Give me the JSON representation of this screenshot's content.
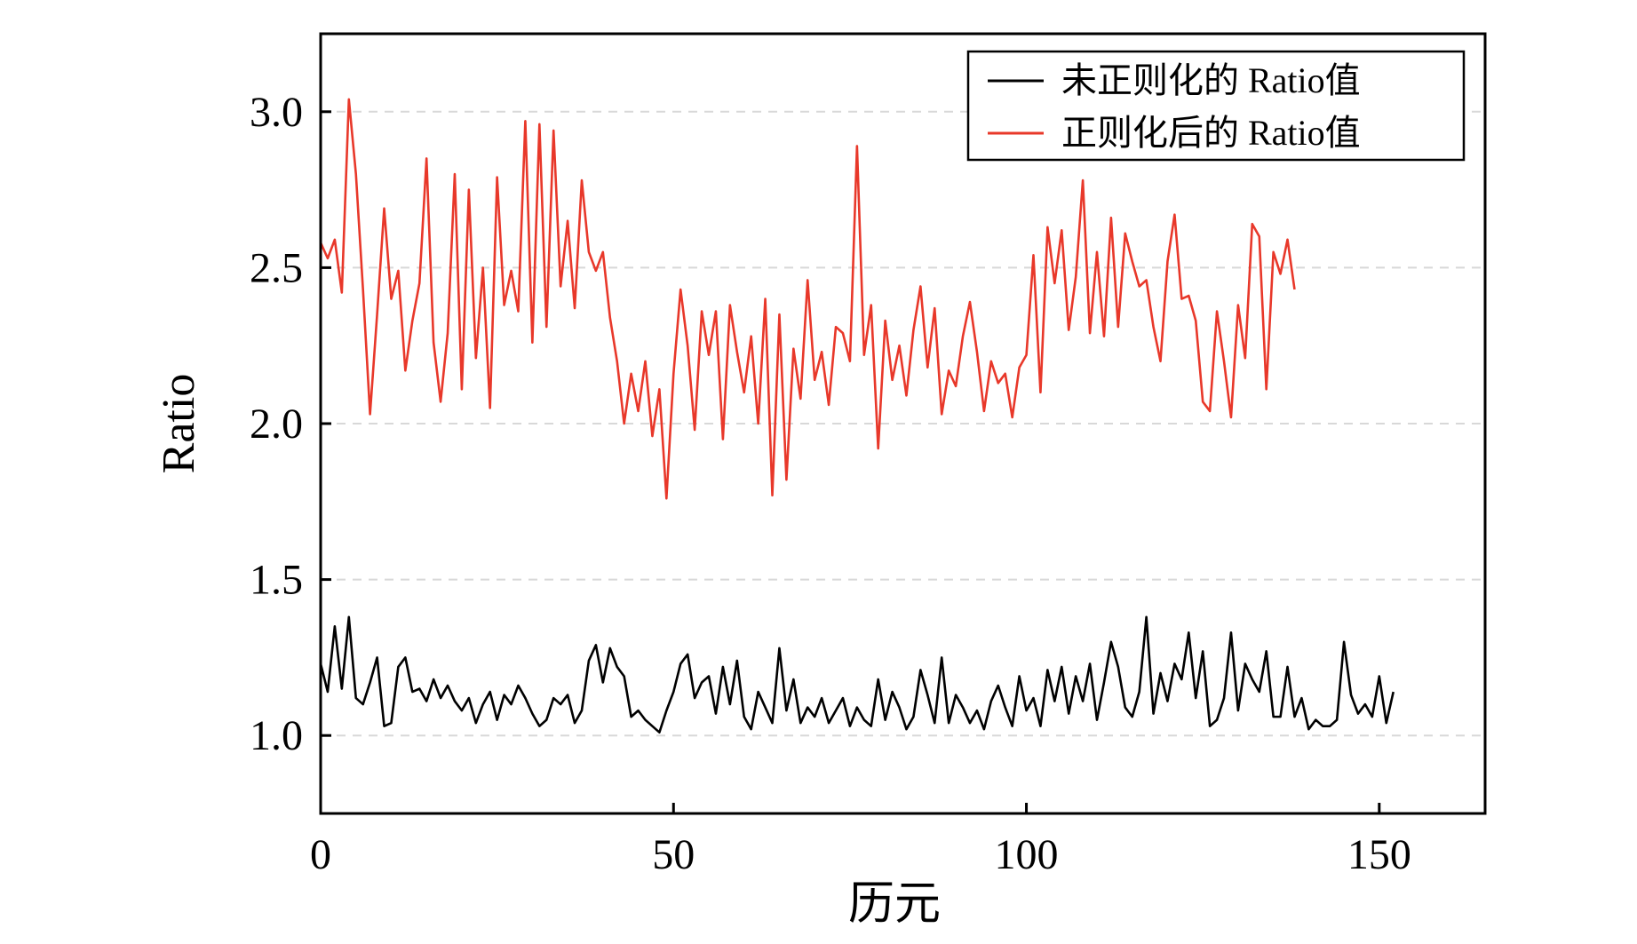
{
  "chart_data": {
    "type": "line",
    "title": "",
    "xlabel": "历元",
    "ylabel": "Ratio",
    "xlim": [
      0,
      165
    ],
    "ylim": [
      0.75,
      3.25
    ],
    "xticks": [
      0,
      50,
      100,
      150
    ],
    "yticks": [
      1.0,
      1.5,
      2.0,
      2.5,
      3.0
    ],
    "xtick_labels": [
      "0",
      "50",
      "100",
      "150"
    ],
    "ytick_labels": [
      "1.0",
      "1.5",
      "2.0",
      "2.5",
      "3.0"
    ],
    "grid": "horizontal dashed",
    "legend_position": "top-right",
    "series": [
      {
        "name": "未正则化的 Ratio值",
        "color": "#000000",
        "values": [
          1.23,
          1.14,
          1.35,
          1.15,
          1.38,
          1.12,
          1.1,
          1.17,
          1.25,
          1.03,
          1.04,
          1.22,
          1.25,
          1.14,
          1.15,
          1.11,
          1.18,
          1.12,
          1.16,
          1.11,
          1.08,
          1.12,
          1.04,
          1.1,
          1.14,
          1.05,
          1.13,
          1.1,
          1.16,
          1.12,
          1.07,
          1.03,
          1.05,
          1.12,
          1.1,
          1.13,
          1.04,
          1.08,
          1.24,
          1.29,
          1.17,
          1.28,
          1.22,
          1.19,
          1.06,
          1.08,
          1.05,
          1.03,
          1.01,
          1.08,
          1.14,
          1.23,
          1.26,
          1.12,
          1.17,
          1.19,
          1.07,
          1.22,
          1.1,
          1.24,
          1.06,
          1.02,
          1.14,
          1.09,
          1.04,
          1.28,
          1.08,
          1.18,
          1.04,
          1.09,
          1.06,
          1.12,
          1.04,
          1.08,
          1.12,
          1.03,
          1.09,
          1.05,
          1.03,
          1.18,
          1.05,
          1.14,
          1.09,
          1.02,
          1.06,
          1.21,
          1.13,
          1.04,
          1.25,
          1.04,
          1.13,
          1.09,
          1.04,
          1.08,
          1.02,
          1.11,
          1.16,
          1.09,
          1.03,
          1.19,
          1.08,
          1.12,
          1.03,
          1.21,
          1.11,
          1.22,
          1.07,
          1.19,
          1.11,
          1.23,
          1.05,
          1.17,
          1.3,
          1.22,
          1.09,
          1.06,
          1.14,
          1.38,
          1.07,
          1.2,
          1.11,
          1.23,
          1.18,
          1.33,
          1.12,
          1.27,
          1.03,
          1.05,
          1.12,
          1.33,
          1.08,
          1.23,
          1.18,
          1.14,
          1.27,
          1.06,
          1.06,
          1.22,
          1.06,
          1.12,
          1.02,
          1.05,
          1.03,
          1.03,
          1.05,
          1.3,
          1.13,
          1.07,
          1.1,
          1.06,
          1.19,
          1.04,
          1.14
        ]
      },
      {
        "name": "正则化后的 Ratio值",
        "color": "#e8382a",
        "values": [
          2.58,
          2.53,
          2.59,
          2.42,
          3.04,
          2.8,
          2.43,
          2.03,
          2.35,
          2.69,
          2.4,
          2.49,
          2.17,
          2.33,
          2.45,
          2.85,
          2.26,
          2.07,
          2.29,
          2.8,
          2.11,
          2.75,
          2.21,
          2.5,
          2.05,
          2.79,
          2.38,
          2.49,
          2.36,
          2.97,
          2.26,
          2.96,
          2.31,
          2.94,
          2.44,
          2.65,
          2.37,
          2.78,
          2.55,
          2.49,
          2.55,
          2.34,
          2.2,
          2.0,
          2.16,
          2.04,
          2.2,
          1.96,
          2.11,
          1.76,
          2.16,
          2.43,
          2.25,
          1.98,
          2.36,
          2.22,
          2.36,
          1.95,
          2.38,
          2.23,
          2.1,
          2.28,
          2.0,
          2.4,
          1.77,
          2.35,
          1.82,
          2.24,
          2.08,
          2.46,
          2.14,
          2.23,
          2.06,
          2.31,
          2.29,
          2.2,
          2.89,
          2.22,
          2.38,
          1.92,
          2.33,
          2.14,
          2.25,
          2.09,
          2.3,
          2.44,
          2.18,
          2.37,
          2.03,
          2.17,
          2.12,
          2.28,
          2.39,
          2.23,
          2.04,
          2.2,
          2.13,
          2.16,
          2.02,
          2.18,
          2.22,
          2.54,
          2.1,
          2.63,
          2.45,
          2.62,
          2.3,
          2.47,
          2.78,
          2.29,
          2.55,
          2.28,
          2.66,
          2.31,
          2.61,
          2.52,
          2.44,
          2.46,
          2.31,
          2.2,
          2.52,
          2.67,
          2.4,
          2.41,
          2.33,
          2.07,
          2.04,
          2.36,
          2.2,
          2.02,
          2.38,
          2.21,
          2.64,
          2.6,
          2.11,
          2.55,
          2.48,
          2.59,
          2.43
        ]
      }
    ]
  }
}
